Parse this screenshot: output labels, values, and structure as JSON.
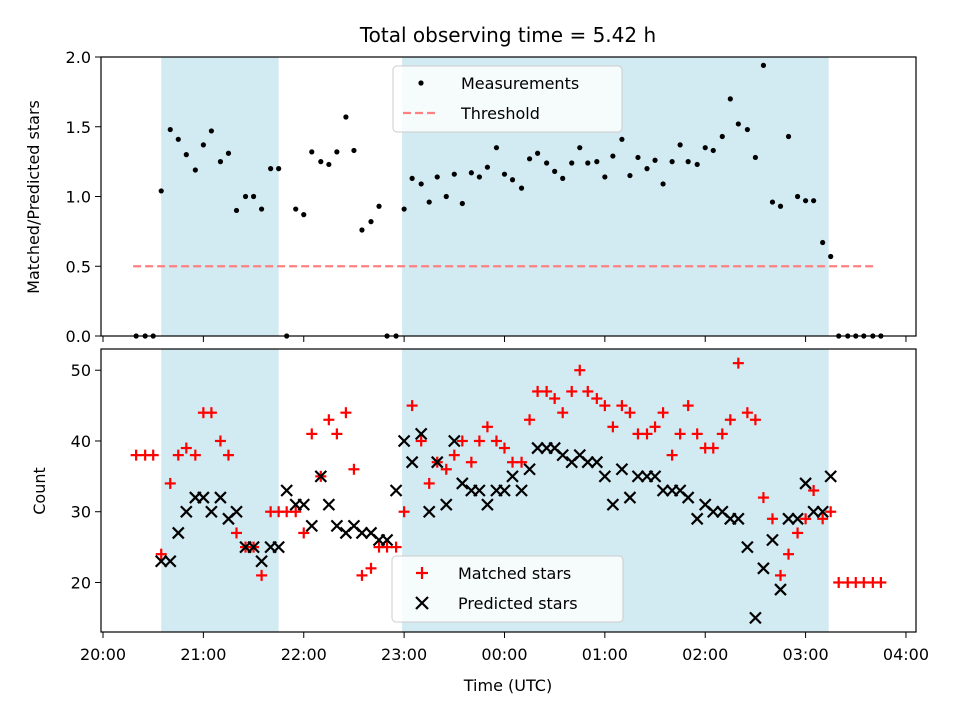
{
  "title": "Total observing time = 5.42 h",
  "colors": {
    "band": "#add8e6",
    "threshold": "#ff8080",
    "matched": "#ff0000",
    "predicted": "#000000",
    "measurement": "#000000"
  },
  "chart_data": [
    {
      "type": "scatter",
      "panel": "top",
      "ylabel": "Matched/Predicted stars",
      "xlabel": "",
      "ylim": [
        0,
        2.0
      ],
      "yticks": [
        "0.0",
        "0.5",
        "1.0",
        "1.5",
        "2.0"
      ],
      "xunit": "hours after 20:00 UTC",
      "xlim": [
        19.98,
        28.1
      ],
      "shaded_intervals": [
        [
          20.58,
          21.75
        ],
        [
          22.98,
          27.23
        ]
      ],
      "legend": {
        "placement": "top-center",
        "entries": [
          "Measurements",
          "Threshold"
        ]
      },
      "series": [
        {
          "name": "Measurements",
          "marker": "dot",
          "x": [
            20.33,
            20.42,
            20.5,
            20.58,
            20.67,
            20.75,
            20.83,
            20.92,
            21.0,
            21.08,
            21.17,
            21.25,
            21.33,
            21.42,
            21.5,
            21.58,
            21.67,
            21.75,
            21.83,
            21.92,
            22.0,
            22.08,
            22.17,
            22.25,
            22.33,
            22.42,
            22.5,
            22.58,
            22.67,
            22.75,
            22.83,
            22.92,
            23.0,
            23.08,
            23.17,
            23.25,
            23.33,
            23.42,
            23.5,
            23.58,
            23.67,
            23.75,
            23.83,
            23.92,
            24.0,
            24.08,
            24.17,
            24.25,
            24.33,
            24.42,
            24.5,
            24.58,
            24.67,
            24.75,
            24.83,
            24.92,
            25.0,
            25.08,
            25.17,
            25.25,
            25.33,
            25.42,
            25.5,
            25.58,
            25.67,
            25.75,
            25.83,
            25.92,
            26.0,
            26.08,
            26.17,
            26.25,
            26.33,
            26.42,
            26.5,
            26.58,
            26.67,
            26.75,
            26.83,
            26.92,
            27.0,
            27.08,
            27.17,
            27.25,
            27.33,
            27.42,
            27.5,
            27.58,
            27.67,
            27.75
          ],
          "y": [
            0,
            0,
            0,
            1.04,
            1.48,
            1.41,
            1.3,
            1.19,
            1.37,
            1.47,
            1.25,
            1.31,
            0.9,
            1.0,
            1.0,
            0.91,
            1.2,
            1.2,
            0,
            0.91,
            0.87,
            1.32,
            1.25,
            1.23,
            1.32,
            1.57,
            1.33,
            0.76,
            0.82,
            0.93,
            0,
            0,
            0.91,
            1.13,
            1.09,
            0.96,
            1.14,
            1.0,
            1.16,
            0.95,
            1.17,
            1.14,
            1.21,
            1.35,
            1.16,
            1.12,
            1.06,
            1.27,
            1.31,
            1.24,
            1.18,
            1.13,
            1.24,
            1.35,
            1.24,
            1.25,
            1.14,
            1.29,
            1.41,
            1.15,
            1.28,
            1.2,
            1.26,
            1.09,
            1.25,
            1.37,
            1.25,
            1.23,
            1.35,
            1.33,
            1.43,
            1.7,
            1.52,
            1.48,
            1.28,
            1.94,
            0.96,
            0.93,
            1.43,
            1.0,
            0.97,
            0.97,
            0.67,
            0.57,
            0,
            0,
            0,
            0,
            0,
            0
          ]
        },
        {
          "name": "Threshold",
          "marker": "dashed-line",
          "x": [
            20.3,
            27.7
          ],
          "y": [
            0.5,
            0.5
          ]
        }
      ]
    },
    {
      "type": "scatter",
      "panel": "bottom",
      "ylabel": "Count",
      "xlabel": "Time (UTC)",
      "ylim": [
        13,
        53
      ],
      "yticks": [
        "20",
        "30",
        "40",
        "50"
      ],
      "xunit": "hours after 20:00 UTC",
      "xlim": [
        19.98,
        28.1
      ],
      "xtick_labels": [
        "20:00",
        "21:00",
        "22:00",
        "23:00",
        "00:00",
        "01:00",
        "02:00",
        "03:00",
        "04:00"
      ],
      "xtick_hours": [
        20,
        21,
        22,
        23,
        24,
        25,
        26,
        27,
        28
      ],
      "shaded_intervals": [
        [
          20.58,
          21.75
        ],
        [
          22.98,
          27.23
        ]
      ],
      "legend": {
        "placement": "bottom-center",
        "entries": [
          "Matched stars",
          "Predicted stars"
        ]
      },
      "series": [
        {
          "name": "Matched stars",
          "marker": "plus",
          "x": [
            20.33,
            20.42,
            20.5,
            20.58,
            20.67,
            20.75,
            20.83,
            20.92,
            21.0,
            21.08,
            21.17,
            21.25,
            21.33,
            21.42,
            21.5,
            21.58,
            21.67,
            21.75,
            21.83,
            21.92,
            22.0,
            22.08,
            22.17,
            22.25,
            22.33,
            22.42,
            22.5,
            22.58,
            22.67,
            22.75,
            22.83,
            22.92,
            23.0,
            23.08,
            23.17,
            23.25,
            23.33,
            23.42,
            23.5,
            23.58,
            23.67,
            23.75,
            23.83,
            23.92,
            24.0,
            24.08,
            24.17,
            24.25,
            24.33,
            24.42,
            24.5,
            24.58,
            24.67,
            24.75,
            24.83,
            24.92,
            25.0,
            25.08,
            25.17,
            25.25,
            25.33,
            25.42,
            25.5,
            25.58,
            25.67,
            25.75,
            25.83,
            25.92,
            26.0,
            26.08,
            26.17,
            26.25,
            26.33,
            26.42,
            26.5,
            26.58,
            26.67,
            26.75,
            26.83,
            26.92,
            27.0,
            27.08,
            27.17,
            27.25,
            27.33,
            27.42,
            27.5,
            27.58,
            27.67,
            27.75
          ],
          "y": [
            38,
            38,
            38,
            24,
            34,
            38,
            39,
            38,
            44,
            44,
            40,
            38,
            27,
            25,
            25,
            21,
            30,
            30,
            30,
            30,
            27,
            41,
            35,
            43,
            41,
            44,
            36,
            21,
            22,
            25,
            25,
            25,
            30,
            45,
            40,
            34,
            37,
            36,
            38,
            40,
            37,
            40,
            42,
            40,
            39,
            37,
            37,
            43,
            47,
            47,
            46,
            44,
            47,
            50,
            47,
            46,
            45,
            42,
            45,
            44,
            41,
            41,
            42,
            44,
            38,
            41,
            45,
            41,
            39,
            39,
            41,
            43,
            51,
            44,
            43,
            32,
            29,
            21,
            24,
            27,
            29,
            33,
            29,
            30,
            20,
            20,
            20,
            20,
            20,
            20
          ]
        },
        {
          "name": "Predicted stars",
          "marker": "x",
          "x": [
            20.58,
            20.67,
            20.75,
            20.83,
            20.92,
            21.0,
            21.08,
            21.17,
            21.25,
            21.33,
            21.42,
            21.5,
            21.58,
            21.67,
            21.75,
            21.83,
            21.92,
            22.0,
            22.08,
            22.17,
            22.25,
            22.33,
            22.42,
            22.5,
            22.58,
            22.67,
            22.75,
            22.83,
            22.92,
            23.0,
            23.08,
            23.17,
            23.25,
            23.33,
            23.42,
            23.5,
            23.58,
            23.67,
            23.75,
            23.83,
            23.92,
            24.0,
            24.08,
            24.17,
            24.25,
            24.33,
            24.42,
            24.5,
            24.58,
            24.67,
            24.75,
            24.83,
            24.92,
            25.0,
            25.08,
            25.17,
            25.25,
            25.33,
            25.42,
            25.5,
            25.58,
            25.67,
            25.75,
            25.83,
            25.92,
            26.0,
            26.08,
            26.17,
            26.25,
            26.33,
            26.42,
            26.5,
            26.58,
            26.67,
            26.75,
            26.83,
            26.92,
            27.0,
            27.08,
            27.17,
            27.25
          ],
          "y": [
            23,
            23,
            27,
            30,
            32,
            32,
            30,
            32,
            29,
            30,
            25,
            25,
            23,
            25,
            25,
            33,
            31,
            31,
            28,
            35,
            31,
            28,
            27,
            28,
            27,
            27,
            26,
            26,
            33,
            40,
            37,
            41,
            30,
            37,
            31,
            40,
            34,
            33,
            33,
            31,
            33,
            33,
            35,
            33,
            36,
            39,
            39,
            39,
            38,
            37,
            38,
            37,
            37,
            35,
            31,
            36,
            32,
            35,
            35,
            35,
            33,
            33,
            33,
            32,
            29,
            31,
            30,
            30,
            29,
            29,
            25,
            15,
            22,
            26,
            19,
            29,
            29,
            34,
            30,
            30,
            35
          ]
        }
      ]
    }
  ]
}
